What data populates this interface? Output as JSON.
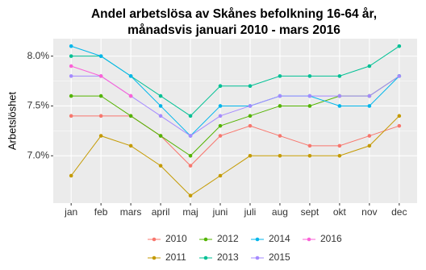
{
  "chart_data": {
    "type": "line",
    "title": [
      "Andel arbetslösa av Skånes befolkning 16-64 år,",
      "månadsvis januari 2010 -  mars 2016"
    ],
    "y_label": "Arbetslöshet",
    "categories": [
      "jan",
      "feb",
      "mars",
      "april",
      "maj",
      "juni",
      "juli",
      "aug",
      "sept",
      "okt",
      "nov",
      "dec"
    ],
    "series": [
      {
        "name": "2010",
        "color": "#F8766D",
        "values": [
          7.4,
          7.4,
          7.4,
          7.2,
          6.9,
          7.2,
          7.3,
          7.2,
          7.1,
          7.1,
          7.2,
          7.3
        ]
      },
      {
        "name": "2011",
        "color": "#C49A00",
        "values": [
          6.8,
          7.2,
          7.1,
          6.9,
          6.6,
          6.8,
          7.0,
          7.0,
          7.0,
          7.0,
          7.1,
          7.4
        ]
      },
      {
        "name": "2012",
        "color": "#53B400",
        "values": [
          7.6,
          7.6,
          7.4,
          7.2,
          7.0,
          7.3,
          7.4,
          7.5,
          7.5,
          7.6,
          7.6,
          7.8
        ]
      },
      {
        "name": "2013",
        "color": "#00C094",
        "values": [
          8.0,
          8.0,
          7.8,
          7.6,
          7.4,
          7.7,
          7.7,
          7.8,
          7.8,
          7.8,
          7.9,
          8.1
        ]
      },
      {
        "name": "2014",
        "color": "#00B6EB",
        "values": [
          8.1,
          8.0,
          7.8,
          7.5,
          7.2,
          7.5,
          7.5,
          7.6,
          7.6,
          7.5,
          7.5,
          7.8
        ]
      },
      {
        "name": "2015",
        "color": "#A58AFF",
        "values": [
          7.8,
          7.8,
          7.6,
          7.4,
          7.2,
          7.4,
          7.5,
          7.6,
          7.6,
          7.6,
          7.6,
          7.8
        ]
      },
      {
        "name": "2016",
        "color": "#FB61D7",
        "values": [
          7.9,
          7.8,
          7.6,
          null,
          null,
          null,
          null,
          null,
          null,
          null,
          null,
          null
        ]
      }
    ],
    "ylim": [
      6.525,
      8.175
    ],
    "yticks": [
      {
        "value": 7.0,
        "label": "7.0%"
      },
      {
        "value": 7.5,
        "label": "7.5%"
      },
      {
        "value": 8.0,
        "label": "8.0%"
      }
    ],
    "grid": true
  }
}
